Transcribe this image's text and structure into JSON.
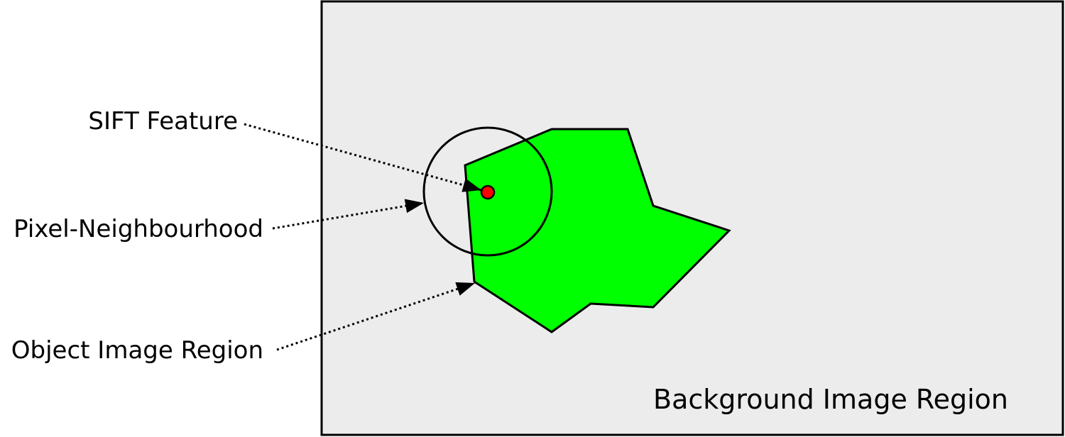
{
  "labels": {
    "sift_feature": "SIFT Feature",
    "pixel_neighbourhood": "Pixel-Neighbourhood",
    "object_image_region": "Object Image Region",
    "background_image_region": "Background Image Region"
  },
  "colors": {
    "background_region_fill": "#ececec",
    "object_region_fill": "#00ff00",
    "feature_point_fill": "#ff0000",
    "stroke": "#000000"
  }
}
